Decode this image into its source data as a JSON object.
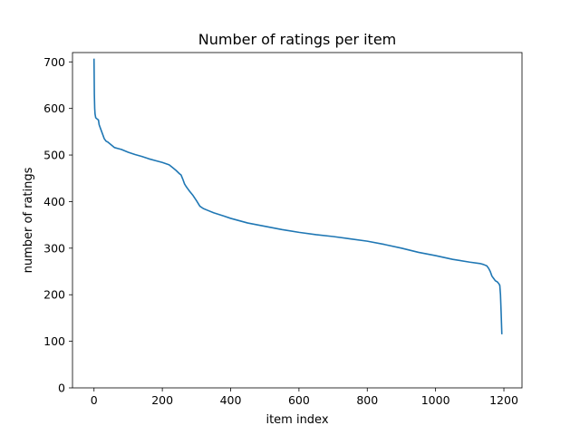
{
  "chart_data": {
    "type": "line",
    "title": "Number of ratings per item",
    "xlabel": "item index",
    "ylabel": "number of ratings",
    "xlim": [
      -63,
      1253
    ],
    "ylim": [
      0,
      720
    ],
    "xticks": [
      0,
      200,
      400,
      600,
      800,
      1000,
      1200
    ],
    "yticks": [
      0,
      100,
      200,
      300,
      400,
      500,
      600,
      700
    ],
    "grid": false,
    "legend": "none",
    "series": [
      {
        "color": "#1f77b4",
        "x": [
          0,
          1,
          2,
          3,
          5,
          8,
          10,
          13,
          15,
          20,
          25,
          30,
          35,
          40,
          50,
          60,
          70,
          80,
          100,
          120,
          140,
          160,
          180,
          200,
          220,
          230,
          240,
          250,
          255,
          260,
          265,
          270,
          275,
          280,
          290,
          300,
          310,
          320,
          330,
          350,
          380,
          400,
          450,
          500,
          550,
          600,
          650,
          700,
          750,
          800,
          850,
          900,
          950,
          1000,
          1050,
          1100,
          1130,
          1140,
          1150,
          1155,
          1160,
          1165,
          1170,
          1175,
          1180,
          1185,
          1188,
          1190,
          1192,
          1194
        ],
        "y": [
          707,
          630,
          600,
          588,
          580,
          578,
          577,
          575,
          565,
          555,
          545,
          535,
          530,
          528,
          522,
          516,
          514,
          512,
          506,
          501,
          497,
          492,
          488,
          484,
          479,
          473,
          467,
          460,
          457,
          448,
          438,
          432,
          427,
          422,
          413,
          402,
          390,
          385,
          382,
          376,
          369,
          364,
          354,
          347,
          340,
          334,
          329,
          325,
          320,
          315,
          308,
          300,
          291,
          284,
          276,
          270,
          267,
          265,
          262,
          257,
          250,
          240,
          235,
          230,
          228,
          224,
          220,
          200,
          160,
          115
        ]
      }
    ]
  }
}
